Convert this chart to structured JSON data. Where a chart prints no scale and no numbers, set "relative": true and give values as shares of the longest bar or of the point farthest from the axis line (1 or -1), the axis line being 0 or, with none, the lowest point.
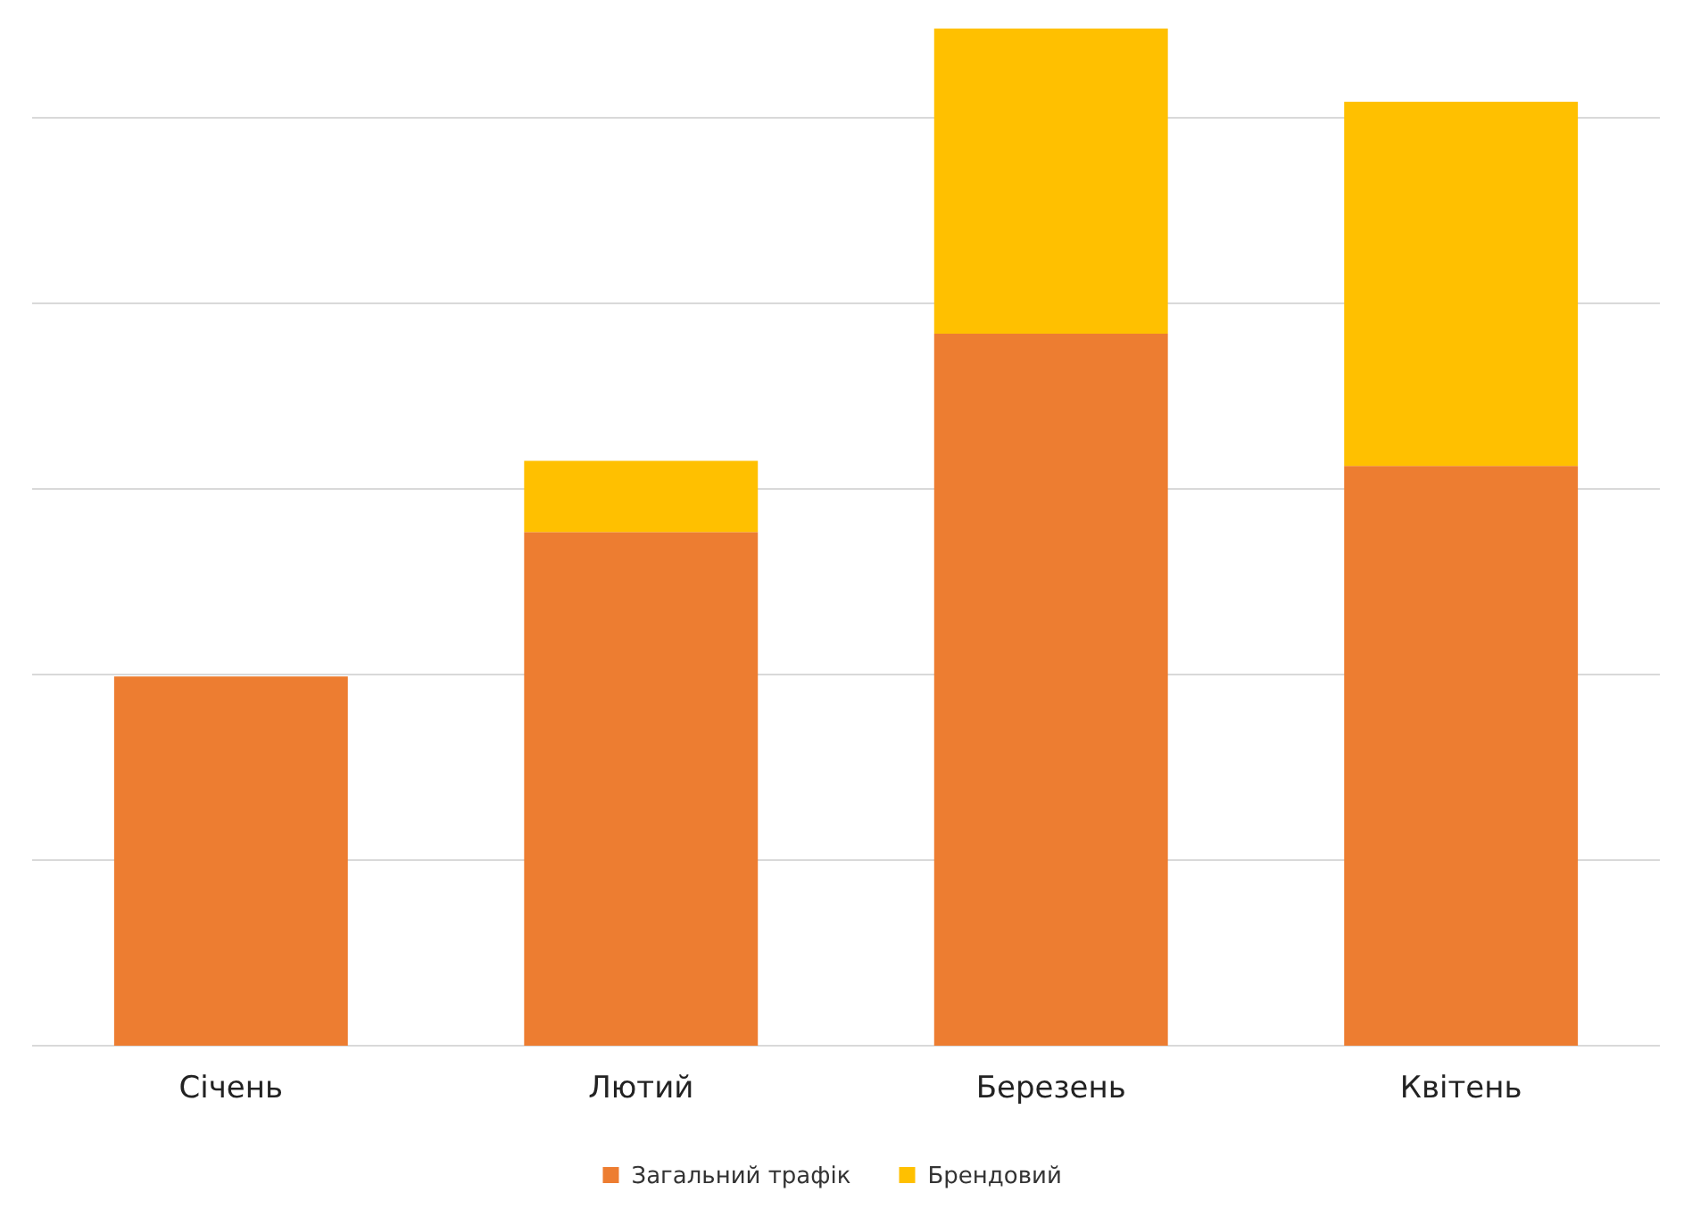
{
  "chart_data": {
    "type": "bar",
    "stacked": true,
    "relative": true,
    "grid": "y",
    "legend": "bottom",
    "categories": [
      "Січень",
      "Лютий",
      "Березень",
      "Квітень"
    ],
    "series": [
      {
        "name": "Загальний трафік",
        "color": "#ed7d31",
        "values": [
          0.363,
          0.505,
          0.7,
          0.57
        ]
      },
      {
        "name": "Брендовий",
        "color": "#ffc000",
        "values": [
          0,
          0.07,
          0.3,
          0.358
        ]
      }
    ]
  }
}
